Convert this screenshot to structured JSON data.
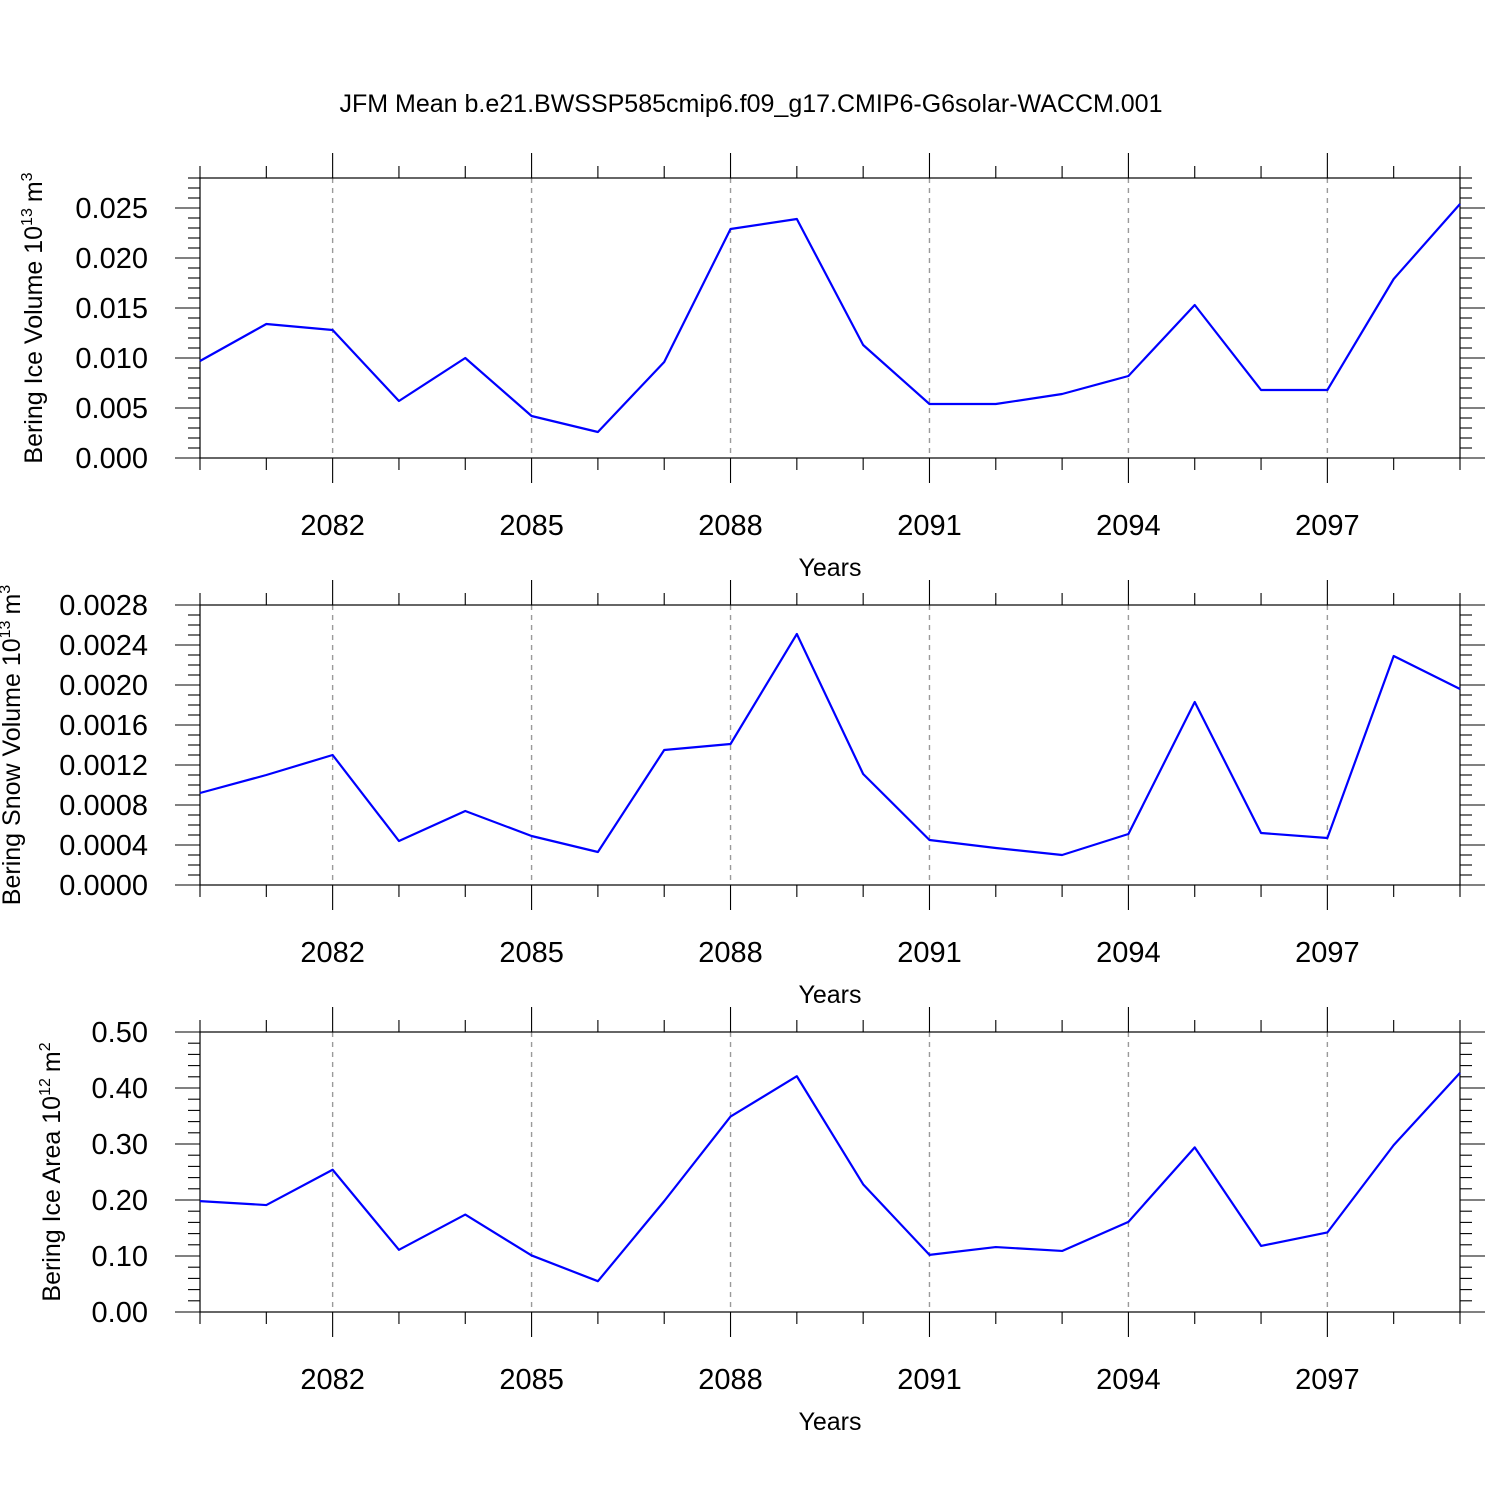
{
  "title": "JFM Mean b.e21.BWSSP585cmip6.f09_g17.CMIP6-G6solar-WACCM.001",
  "line_color": "#0000ff",
  "chart_data": [
    {
      "type": "line",
      "ylabel_main": "Bering Ice Volume 10",
      "ylabel_exp": "13",
      "ylabel_unit": "m",
      "ylabel_unit_exp": "3",
      "xlabel": "Years",
      "xlim": [
        2080,
        2099
      ],
      "ylim": [
        0,
        0.028
      ],
      "x_ticks": [
        2082,
        2085,
        2088,
        2091,
        2094,
        2097
      ],
      "y_ticks": [
        0.0,
        0.005,
        0.01,
        0.015,
        0.02,
        0.025
      ],
      "y_tick_labels": [
        "0.000",
        "0.005",
        "0.010",
        "0.015",
        "0.020",
        "0.025"
      ],
      "y_minor_step": 0.001,
      "x": [
        2080,
        2081,
        2082,
        2083,
        2084,
        2085,
        2086,
        2087,
        2088,
        2089,
        2090,
        2091,
        2092,
        2093,
        2094,
        2095,
        2096,
        2097,
        2098,
        2099
      ],
      "values": [
        0.0097,
        0.0134,
        0.0128,
        0.0057,
        0.01,
        0.0042,
        0.0026,
        0.0096,
        0.0229,
        0.0239,
        0.0113,
        0.0054,
        0.0054,
        0.0064,
        0.0082,
        0.0153,
        0.0068,
        0.0068,
        0.0179,
        0.0254
      ]
    },
    {
      "type": "line",
      "ylabel_main": "Bering Snow Volume 10",
      "ylabel_exp": "13",
      "ylabel_unit": "m",
      "ylabel_unit_exp": "3",
      "xlabel": "Years",
      "xlim": [
        2080,
        2099
      ],
      "ylim": [
        0,
        0.0028
      ],
      "x_ticks": [
        2082,
        2085,
        2088,
        2091,
        2094,
        2097
      ],
      "y_ticks": [
        0.0,
        0.0004,
        0.0008,
        0.0012,
        0.0016,
        0.002,
        0.0024,
        0.0028
      ],
      "y_tick_labels": [
        "0.0000",
        "0.0004",
        "0.0008",
        "0.0012",
        "0.0016",
        "0.0020",
        "0.0024",
        "0.0028"
      ],
      "y_minor_step": 0.0001,
      "x": [
        2080,
        2081,
        2082,
        2083,
        2084,
        2085,
        2086,
        2087,
        2088,
        2089,
        2090,
        2091,
        2092,
        2093,
        2094,
        2095,
        2096,
        2097,
        2098,
        2099
      ],
      "values": [
        0.00092,
        0.0011,
        0.0013,
        0.00044,
        0.00074,
        0.00049,
        0.00033,
        0.00135,
        0.00141,
        0.00251,
        0.00111,
        0.00045,
        0.00037,
        0.0003,
        0.00051,
        0.00183,
        0.00052,
        0.00047,
        0.00229,
        0.00196
      ]
    },
    {
      "type": "line",
      "ylabel_main": "Bering Ice Area 10",
      "ylabel_exp": "12",
      "ylabel_unit": "m",
      "ylabel_unit_exp": "2",
      "xlabel": "Years",
      "xlim": [
        2080,
        2099
      ],
      "ylim": [
        0,
        0.5
      ],
      "x_ticks": [
        2082,
        2085,
        2088,
        2091,
        2094,
        2097
      ],
      "y_ticks": [
        0.0,
        0.1,
        0.2,
        0.3,
        0.4,
        0.5
      ],
      "y_tick_labels": [
        "0.00",
        "0.10",
        "0.20",
        "0.30",
        "0.40",
        "0.50"
      ],
      "y_minor_step": 0.02,
      "x": [
        2080,
        2081,
        2082,
        2083,
        2084,
        2085,
        2086,
        2087,
        2088,
        2089,
        2090,
        2091,
        2092,
        2093,
        2094,
        2095,
        2096,
        2097,
        2098,
        2099
      ],
      "values": [
        0.198,
        0.191,
        0.254,
        0.111,
        0.174,
        0.101,
        0.055,
        0.198,
        0.349,
        0.421,
        0.228,
        0.102,
        0.116,
        0.109,
        0.161,
        0.294,
        0.118,
        0.142,
        0.298,
        0.427
      ]
    }
  ]
}
